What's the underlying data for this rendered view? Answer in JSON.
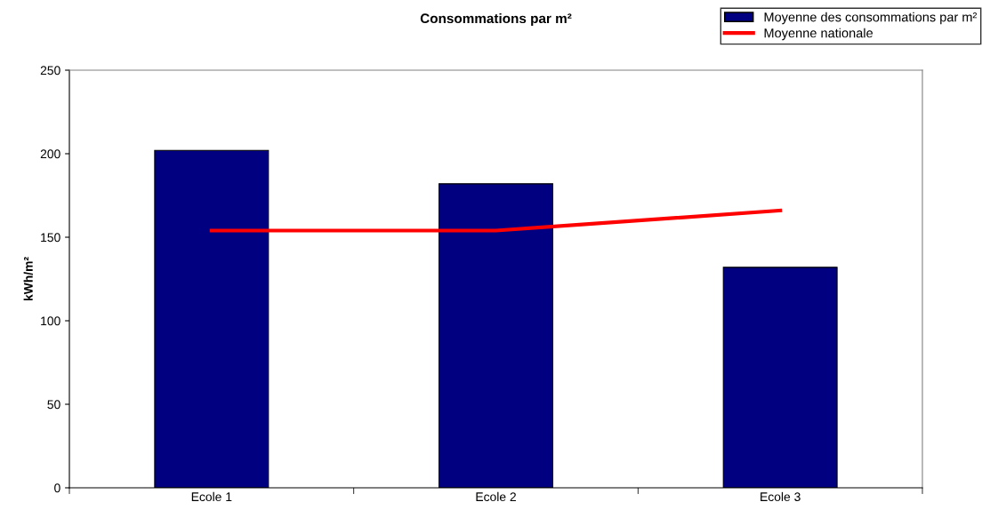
{
  "chart_data": {
    "type": "bar",
    "title": "Consommations par m²",
    "ylabel": "kWh/m²",
    "categories": [
      "Ecole 1",
      "Ecole 2",
      "Ecole 3"
    ],
    "series": [
      {
        "name": "Moyenne des consommations par m²",
        "color": "#000080",
        "values": [
          202,
          182,
          132
        ]
      },
      {
        "name": "Moyenne nationale",
        "type": "line",
        "color": "#ff0000",
        "values": [
          154,
          154,
          166
        ]
      }
    ],
    "ylim": [
      0,
      250
    ],
    "yticks": [
      0,
      50,
      100,
      150,
      200,
      250
    ],
    "grid": false,
    "legend": "top right"
  }
}
